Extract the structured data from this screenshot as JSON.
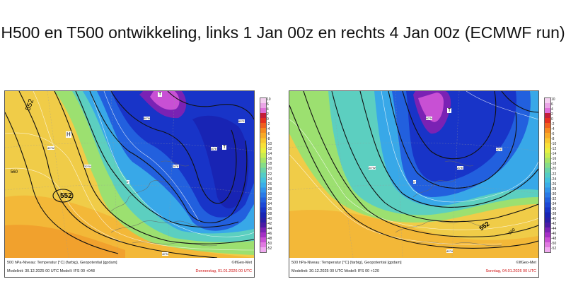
{
  "title": "H500 en T500 ontwikkeling, links 1 Jan 00z en rechts 4 Jan 00z (ECMWF run)",
  "colorbar": {
    "labels": [
      "10",
      "6",
      "4",
      "2",
      "0",
      "-2",
      "-4",
      "-6",
      "-8",
      "-10",
      "-12",
      "-14",
      "-16",
      "-18",
      "-20",
      "-22",
      "-24",
      "-26",
      "-28",
      "-30",
      "-32",
      "-34",
      "-36",
      "-38",
      "-40",
      "-42",
      "-44",
      "-46",
      "-48",
      "-50",
      "-52"
    ],
    "colors": [
      "#f4d0f0",
      "#eaa6e6",
      "#e070d8",
      "#c41e3a",
      "#e63020",
      "#f06020",
      "#f58a20",
      "#f8aa28",
      "#f8c830",
      "#f8e038",
      "#e8f040",
      "#c8ec50",
      "#a6e468",
      "#86dc88",
      "#6ad4a8",
      "#54ccc6",
      "#44c2de",
      "#3aaee8",
      "#3294ea",
      "#2a7ae6",
      "#2260de",
      "#1c48d6",
      "#1834c8",
      "#1824b4",
      "#2a1ea8",
      "#4a1ca4",
      "#7a22b4",
      "#a430c4",
      "#c850d4",
      "#e07ae0",
      "#f0aaf0"
    ]
  },
  "panels": [
    {
      "id": "left",
      "footer_line1": "500 hPa-Niveau: Temperatur [°C] (farbig), Geopotential [gpdam]",
      "footer_line2": "Modelinit: 30.12.2025 00 UTC     Modell: IFS     00 +048",
      "copyright": "©IfGeo-Met",
      "valid": "Donnerstag, 01.01.2026 00 UTC",
      "labels": [
        {
          "name": "contour-label-552-nw",
          "text": "552"
        },
        {
          "name": "contour-label-560",
          "text": "560"
        },
        {
          "name": "contour-label-552-closed",
          "text": "552"
        },
        {
          "name": "high-label",
          "text": "H"
        },
        {
          "name": "low-label",
          "text": "T"
        },
        {
          "name": "low-label-east",
          "text": "T"
        },
        {
          "name": "lat-label-60n",
          "text": "60°N"
        },
        {
          "name": "lat-label-40n",
          "text": "40°N"
        },
        {
          "name": "lon-label-40w",
          "text": "40°W"
        },
        {
          "name": "lon-label-20w",
          "text": "20°W"
        },
        {
          "name": "lon-label-0",
          "text": "0°"
        },
        {
          "name": "lon-label-20e",
          "text": "20°E"
        },
        {
          "name": "lon-label-40e",
          "text": "40°E"
        },
        {
          "name": "lon-label-60e",
          "text": "60°E"
        }
      ]
    },
    {
      "id": "right",
      "footer_line1": "500 hPa-Niveau: Temperatur [°C] (farbig), Geopotential [gpdam]",
      "footer_line2": "Modelinit: 30.12.2025 00 UTC     Modell: IFS     00 +120",
      "copyright": "©IfGeo-Met",
      "valid": "Sonntag, 04.01.2026 00 UTC",
      "labels": [
        {
          "name": "contour-label-552",
          "text": "552"
        },
        {
          "name": "contour-label-560",
          "text": "560"
        },
        {
          "name": "low-label",
          "text": "T"
        },
        {
          "name": "lat-label-60n",
          "text": "60°N"
        },
        {
          "name": "lat-label-40n",
          "text": "40°N"
        },
        {
          "name": "lon-label-20w",
          "text": "20°W"
        },
        {
          "name": "lon-label-0",
          "text": "0°"
        },
        {
          "name": "lon-label-20e",
          "text": "20°E"
        },
        {
          "name": "lon-label-40e",
          "text": "40°E"
        }
      ]
    }
  ]
}
